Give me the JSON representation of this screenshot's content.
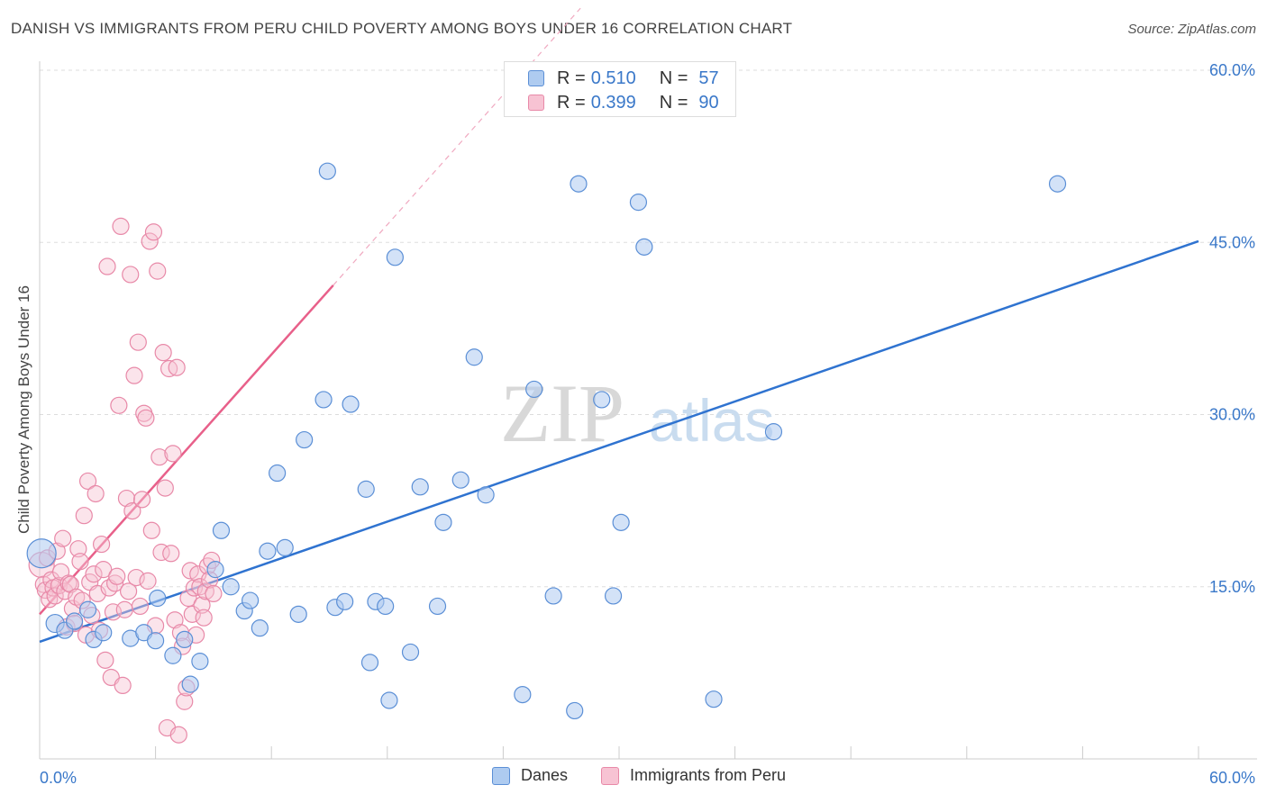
{
  "header": {
    "title": "DANISH VS IMMIGRANTS FROM PERU CHILD POVERTY AMONG BOYS UNDER 16 CORRELATION CHART",
    "source": "Source: ZipAtlas.com"
  },
  "watermark": {
    "zip": "ZIP",
    "atlas": "atlas"
  },
  "legend": {
    "rows": [
      {
        "r_label": "R =",
        "r_value": "0.510",
        "n_label": "N =",
        "n_value": "57"
      },
      {
        "r_label": "R =",
        "r_value": "0.399",
        "n_label": "N =",
        "n_value": "90"
      }
    ]
  },
  "bottom_legend": {
    "danes": "Danes",
    "peru": "Immigrants from Peru"
  },
  "colors": {
    "danes_fill": "#aecbf0",
    "danes_stroke": "#5b8fd6",
    "danes_line": "#2f73d0",
    "peru_fill": "#f7c3d3",
    "peru_stroke": "#e889a8",
    "peru_line": "#e8608a",
    "axis_text": "#3a78c9",
    "grid": "#dddddd"
  },
  "chart_data": {
    "type": "scatter",
    "title": "DANISH VS IMMIGRANTS FROM PERU CHILD POVERTY AMONG BOYS UNDER 16 CORRELATION CHART",
    "xlabel": "",
    "ylabel": "Child Poverty Among Boys Under 16",
    "xlim": [
      0,
      60
    ],
    "ylim": [
      0,
      60
    ],
    "x_tick_labels": [
      "0.0%",
      "60.0%"
    ],
    "y_ticks": [
      15,
      30,
      45,
      60
    ],
    "y_tick_labels": [
      "15.0%",
      "30.0%",
      "45.0%",
      "60.0%"
    ],
    "series": [
      {
        "name": "Danes",
        "r": 0.51,
        "n": 57,
        "trend": {
          "x": [
            0,
            60
          ],
          "y": [
            10.2,
            45.1
          ],
          "solid_range": [
            0,
            60
          ]
        },
        "points": [
          [
            0.1,
            17.9,
            16
          ],
          [
            0.8,
            11.8,
            10
          ],
          [
            1.3,
            11.2,
            9
          ],
          [
            1.8,
            12.0,
            9
          ],
          [
            2.5,
            13.0,
            9
          ],
          [
            2.8,
            10.4,
            9
          ],
          [
            3.3,
            11.0,
            9
          ],
          [
            4.7,
            10.5,
            9
          ],
          [
            5.4,
            11.0,
            9
          ],
          [
            6.0,
            10.3,
            9
          ],
          [
            6.1,
            14.0,
            9
          ],
          [
            6.9,
            9.0,
            9
          ],
          [
            7.5,
            10.4,
            9
          ],
          [
            7.8,
            6.5,
            9
          ],
          [
            8.3,
            8.5,
            9
          ],
          [
            9.1,
            16.5,
            9
          ],
          [
            9.4,
            19.9,
            9
          ],
          [
            9.9,
            15.0,
            9
          ],
          [
            10.6,
            12.9,
            9
          ],
          [
            10.9,
            13.8,
            9
          ],
          [
            11.4,
            11.4,
            9
          ],
          [
            11.8,
            18.1,
            9
          ],
          [
            12.3,
            24.9,
            9
          ],
          [
            12.7,
            18.4,
            9
          ],
          [
            13.4,
            12.6,
            9
          ],
          [
            13.7,
            27.8,
            9
          ],
          [
            14.7,
            31.3,
            9
          ],
          [
            14.9,
            51.2,
            9
          ],
          [
            15.3,
            13.2,
            9
          ],
          [
            15.8,
            13.7,
            9
          ],
          [
            16.1,
            30.9,
            9
          ],
          [
            16.9,
            23.5,
            9
          ],
          [
            17.4,
            13.7,
            9
          ],
          [
            17.9,
            13.3,
            9
          ],
          [
            18.1,
            5.1,
            9
          ],
          [
            18.4,
            43.7,
            9
          ],
          [
            19.2,
            9.3,
            9
          ],
          [
            19.7,
            23.7,
            9
          ],
          [
            20.6,
            13.3,
            9
          ],
          [
            20.9,
            20.6,
            9
          ],
          [
            21.8,
            24.3,
            9
          ],
          [
            22.5,
            35.0,
            9
          ],
          [
            23.1,
            23.0,
            9
          ],
          [
            25.0,
            5.6,
            9
          ],
          [
            25.6,
            32.2,
            9
          ],
          [
            26.6,
            14.2,
            9
          ],
          [
            27.7,
            4.2,
            9
          ],
          [
            27.9,
            50.1,
            9
          ],
          [
            29.1,
            31.3,
            9
          ],
          [
            29.7,
            14.2,
            9
          ],
          [
            30.1,
            20.6,
            9
          ],
          [
            31.0,
            48.5,
            9
          ],
          [
            31.3,
            44.6,
            9
          ],
          [
            34.9,
            5.2,
            9
          ],
          [
            38.0,
            28.5,
            9
          ],
          [
            52.7,
            50.1,
            9
          ],
          [
            17.1,
            8.4,
            9
          ]
        ]
      },
      {
        "name": "Immigrants from Peru",
        "r": 0.399,
        "n": 90,
        "trend": {
          "x": [
            0,
            28
          ],
          "y": [
            12.6,
            65.4
          ],
          "solid_range": [
            0,
            15.2
          ]
        },
        "points": [
          [
            0.1,
            16.9,
            14
          ],
          [
            0.2,
            15.2,
            9
          ],
          [
            0.3,
            14.7,
            9
          ],
          [
            0.4,
            17.5,
            9
          ],
          [
            0.5,
            13.9,
            9
          ],
          [
            0.6,
            15.6,
            9
          ],
          [
            0.7,
            14.9,
            9
          ],
          [
            0.8,
            14.2,
            9
          ],
          [
            0.9,
            18.1,
            9
          ],
          [
            1.0,
            15.1,
            9
          ],
          [
            1.1,
            16.3,
            9
          ],
          [
            1.2,
            19.2,
            9
          ],
          [
            1.3,
            14.6,
            9
          ],
          [
            1.4,
            11.5,
            9
          ],
          [
            1.5,
            15.3,
            9
          ],
          [
            1.6,
            15.2,
            9
          ],
          [
            1.7,
            13.1,
            9
          ],
          [
            1.8,
            11.8,
            9
          ],
          [
            1.9,
            14.1,
            9
          ],
          [
            2.0,
            18.3,
            9
          ],
          [
            2.1,
            17.2,
            9
          ],
          [
            2.2,
            13.8,
            9
          ],
          [
            2.3,
            21.2,
            9
          ],
          [
            2.4,
            10.8,
            9
          ],
          [
            2.5,
            24.2,
            9
          ],
          [
            2.6,
            15.4,
            9
          ],
          [
            2.7,
            12.5,
            9
          ],
          [
            2.8,
            16.1,
            9
          ],
          [
            2.9,
            23.1,
            9
          ],
          [
            3.0,
            14.4,
            9
          ],
          [
            3.1,
            11.2,
            9
          ],
          [
            3.2,
            18.7,
            9
          ],
          [
            3.3,
            16.5,
            9
          ],
          [
            3.4,
            8.6,
            9
          ],
          [
            3.5,
            42.9,
            9
          ],
          [
            3.6,
            14.9,
            9
          ],
          [
            3.7,
            7.1,
            9
          ],
          [
            3.8,
            12.8,
            9
          ],
          [
            3.9,
            15.3,
            9
          ],
          [
            4.0,
            15.9,
            9
          ],
          [
            4.1,
            30.8,
            9
          ],
          [
            4.2,
            46.4,
            9
          ],
          [
            4.3,
            6.4,
            9
          ],
          [
            4.4,
            13.0,
            9
          ],
          [
            4.5,
            22.7,
            9
          ],
          [
            4.6,
            14.6,
            9
          ],
          [
            4.7,
            42.2,
            9
          ],
          [
            4.8,
            21.6,
            9
          ],
          [
            4.9,
            33.4,
            9
          ],
          [
            5.0,
            15.8,
            9
          ],
          [
            5.1,
            36.3,
            9
          ],
          [
            5.2,
            13.3,
            9
          ],
          [
            5.3,
            22.6,
            9
          ],
          [
            5.4,
            30.1,
            9
          ],
          [
            5.5,
            29.7,
            9
          ],
          [
            5.6,
            15.5,
            9
          ],
          [
            5.7,
            45.1,
            9
          ],
          [
            5.8,
            19.9,
            9
          ],
          [
            5.9,
            45.9,
            9
          ],
          [
            6.0,
            11.6,
            9
          ],
          [
            6.1,
            42.5,
            9
          ],
          [
            6.2,
            26.3,
            9
          ],
          [
            6.3,
            18.0,
            9
          ],
          [
            6.4,
            35.4,
            9
          ],
          [
            6.5,
            23.6,
            9
          ],
          [
            6.6,
            2.7,
            9
          ],
          [
            6.7,
            34.0,
            9
          ],
          [
            6.8,
            17.9,
            9
          ],
          [
            6.9,
            26.6,
            9
          ],
          [
            7.0,
            12.1,
            9
          ],
          [
            7.1,
            34.1,
            9
          ],
          [
            7.2,
            2.1,
            9
          ],
          [
            7.3,
            11.0,
            9
          ],
          [
            7.4,
            9.8,
            9
          ],
          [
            7.5,
            5.0,
            9
          ],
          [
            7.6,
            6.2,
            9
          ],
          [
            7.7,
            14.0,
            9
          ],
          [
            7.8,
            16.4,
            9
          ],
          [
            7.9,
            12.6,
            9
          ],
          [
            8.0,
            14.9,
            9
          ],
          [
            8.1,
            10.8,
            9
          ],
          [
            8.2,
            16.1,
            9
          ],
          [
            8.3,
            15.0,
            9
          ],
          [
            8.4,
            13.4,
            9
          ],
          [
            8.5,
            12.3,
            9
          ],
          [
            8.6,
            14.6,
            9
          ],
          [
            8.7,
            16.8,
            9
          ],
          [
            8.8,
            15.6,
            9
          ],
          [
            8.9,
            17.3,
            9
          ],
          [
            9.0,
            14.4,
            9
          ]
        ]
      }
    ]
  }
}
